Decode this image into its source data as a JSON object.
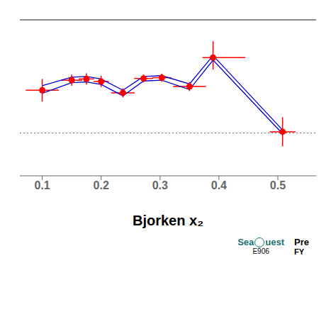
{
  "chart_data": {
    "type": "scatter",
    "x_label": "Bjorken x₂",
    "xlim": [
      0.062,
      0.565
    ],
    "xticks": [
      0.1,
      0.2,
      0.3,
      0.4,
      0.5
    ],
    "ylim": [
      0.28,
      0.9
    ],
    "tick_labels": "x",
    "grid": false,
    "series": [
      {
        "type": "hline",
        "color": "#666666",
        "line_style": "dotted",
        "values": [
          0.45
        ]
      },
      {
        "type": "line",
        "color": "#0000cc",
        "x": [
          0.1,
          0.15,
          0.175,
          0.2,
          0.237,
          0.272,
          0.303,
          0.35,
          0.39,
          0.508
        ],
        "values": [
          0.638,
          0.672,
          0.675,
          0.665,
          0.62,
          0.675,
          0.678,
          0.645,
          0.758,
          0.462
        ]
      },
      {
        "type": "line",
        "color": "#0000cc",
        "x": [
          0.1,
          0.15,
          0.175,
          0.2,
          0.237,
          0.272,
          0.303,
          0.35,
          0.39,
          0.508
        ],
        "values": [
          0.608,
          0.65,
          0.653,
          0.643,
          0.598,
          0.657,
          0.66,
          0.623,
          0.74,
          0.447
        ]
      },
      {
        "type": "scatter",
        "color": "#ff0000",
        "marker": "circle",
        "x": [
          0.1,
          0.15,
          0.175,
          0.2,
          0.237,
          0.272,
          0.303,
          0.35,
          0.39,
          0.508
        ],
        "values": [
          0.62,
          0.66,
          0.665,
          0.655,
          0.61,
          0.667,
          0.67,
          0.635,
          0.75,
          0.455
        ],
        "xerr_lo": [
          0.028,
          0.018,
          0.013,
          0.013,
          0.02,
          0.016,
          0.016,
          0.028,
          0.018,
          0.022
        ],
        "xerr_hi": [
          0.028,
          0.018,
          0.013,
          0.013,
          0.02,
          0.016,
          0.016,
          0.028,
          0.055,
          0.022
        ],
        "yerr_lo": [
          0.045,
          0.022,
          0.022,
          0.022,
          0.018,
          0.016,
          0.016,
          0.018,
          0.048,
          0.058
        ],
        "yerr_hi": [
          0.045,
          0.022,
          0.022,
          0.022,
          0.018,
          0.016,
          0.016,
          0.018,
          0.065,
          0.058
        ]
      }
    ],
    "annotations": [
      {
        "text": "Sea",
        "color": "#1a7070"
      },
      {
        "text": "uest",
        "color": "#1a7070"
      },
      {
        "text": "E906"
      },
      {
        "text": "Pre"
      },
      {
        "text": "FY"
      }
    ]
  }
}
